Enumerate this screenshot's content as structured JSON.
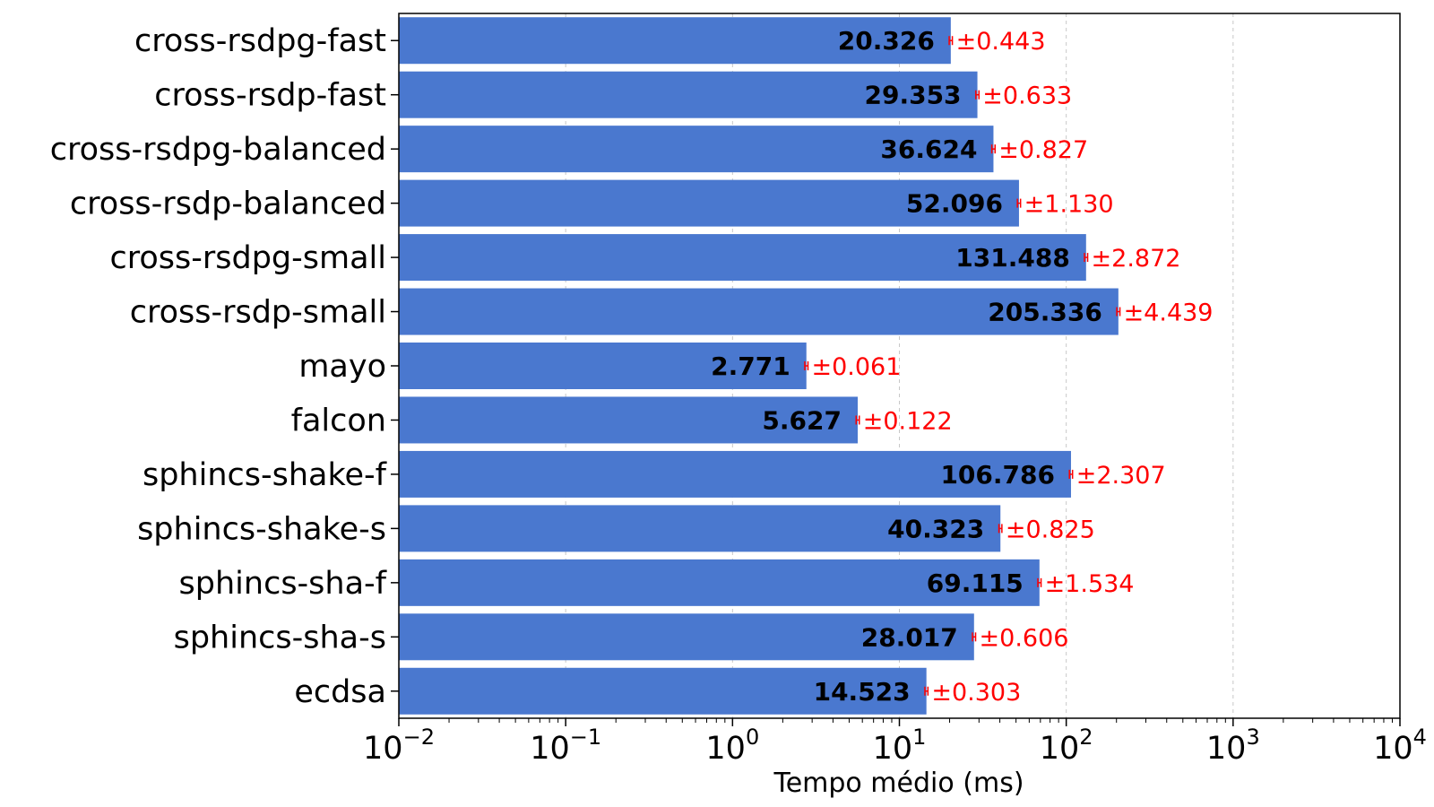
{
  "chart_data": {
    "type": "bar",
    "orientation": "horizontal",
    "xscale": "log",
    "xlim": [
      0.01,
      10000
    ],
    "xlabel": "Tempo médio (ms)",
    "ylabel": "",
    "title": "",
    "grid": "vertical-dashed",
    "x_ticks": [
      {
        "base": "10",
        "exp": "−2",
        "value": 0.01
      },
      {
        "base": "10",
        "exp": "−1",
        "value": 0.1
      },
      {
        "base": "10",
        "exp": "0",
        "value": 1
      },
      {
        "base": "10",
        "exp": "1",
        "value": 10
      },
      {
        "base": "10",
        "exp": "2",
        "value": 100
      },
      {
        "base": "10",
        "exp": "3",
        "value": 1000
      },
      {
        "base": "10",
        "exp": "4",
        "value": 10000
      }
    ],
    "categories": [
      "cross-rsdpg-fast",
      "cross-rsdp-fast",
      "cross-rsdpg-balanced",
      "cross-rsdp-balanced",
      "cross-rsdpg-small",
      "cross-rsdp-small",
      "mayo",
      "falcon",
      "sphincs-shake-f",
      "sphincs-shake-s",
      "sphincs-sha-f",
      "sphincs-sha-s",
      "ecdsa"
    ],
    "values": [
      20.326,
      29.353,
      36.624,
      52.096,
      131.488,
      205.336,
      2.771,
      5.627,
      106.786,
      40.323,
      69.115,
      28.017,
      14.523
    ],
    "value_labels": [
      "20.326",
      "29.353",
      "36.624",
      "52.096",
      "131.488",
      "205.336",
      "2.771",
      "5.627",
      "106.786",
      "40.323",
      "69.115",
      "28.017",
      "14.523"
    ],
    "errors": [
      0.443,
      0.633,
      0.827,
      1.13,
      2.872,
      4.439,
      0.061,
      0.122,
      2.307,
      0.825,
      1.534,
      0.606,
      0.303
    ],
    "error_labels": [
      "±0.443",
      "±0.633",
      "±0.827",
      "±1.130",
      "±2.872",
      "±4.439",
      "±0.061",
      "±0.122",
      "±2.307",
      "±0.825",
      "±1.534",
      "±0.606",
      "±0.303"
    ],
    "colors": {
      "bar": "#4a78cf",
      "error": "#ff0000",
      "grid": "#c8c8c8",
      "axis": "#000000"
    }
  }
}
